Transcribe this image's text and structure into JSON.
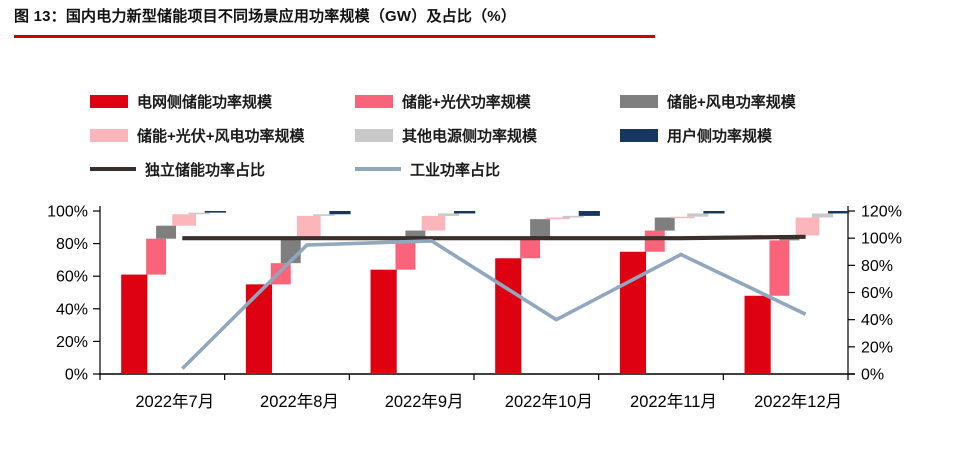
{
  "title": "图 13：国内电力新型储能项目不同场景应用功率规模（GW）及占比（%）",
  "accent_underline_color": "#CC0000",
  "chart_data": {
    "type": "combo: waterfall stacked bar (left axis) + line (right axis)",
    "categories": [
      "2022年7月",
      "2022年8月",
      "2022年9月",
      "2022年10月",
      "2022年11月",
      "2022年12月"
    ],
    "stacking_note": "bar segments step up waterfall-style and are cumulative to 100% per month",
    "bar_series": [
      {
        "name": "电网侧储能功率规模",
        "color": "#DE0111",
        "values": [
          61,
          55,
          64,
          71,
          75,
          48
        ]
      },
      {
        "name": "储能+光伏功率规模",
        "color": "#F9647B",
        "values": [
          22,
          13,
          18,
          12,
          13,
          34
        ]
      },
      {
        "name": "储能+风电功率规模",
        "color": "#7F7F7F",
        "values": [
          8,
          16,
          6,
          12,
          8,
          3
        ]
      },
      {
        "name": "储能+光伏+风电功率规模",
        "color": "#FBB6BC",
        "values": [
          7,
          13,
          9,
          1,
          0.5,
          11
        ]
      },
      {
        "name": "其他电源侧功率规模",
        "color": "#C9C9C9",
        "values": [
          1,
          1,
          1.5,
          1,
          2,
          2.5
        ]
      },
      {
        "name": "用户侧功率规模",
        "color": "#17375E",
        "values": [
          1,
          2,
          1.5,
          3,
          1.5,
          1.5
        ]
      }
    ],
    "line_series": [
      {
        "name": "独立储能功率占比",
        "color": "#3A2F2C",
        "axis": "right",
        "values": [
          100,
          100,
          100,
          100,
          100,
          101
        ]
      },
      {
        "name": "工业功率占比",
        "color": "#90A7BE",
        "axis": "right",
        "values": [
          4,
          95,
          98,
          40,
          88,
          44
        ]
      }
    ],
    "left_axis": {
      "min": 0,
      "max": 100,
      "tick_labels": [
        "0%",
        "20%",
        "40%",
        "60%",
        "80%",
        "100%"
      ]
    },
    "right_axis": {
      "min": 0,
      "max": 120,
      "tick_labels": [
        "0%",
        "20%",
        "40%",
        "60%",
        "80%",
        "100%",
        "120%"
      ]
    },
    "legend_position": "top",
    "grid": "off"
  }
}
